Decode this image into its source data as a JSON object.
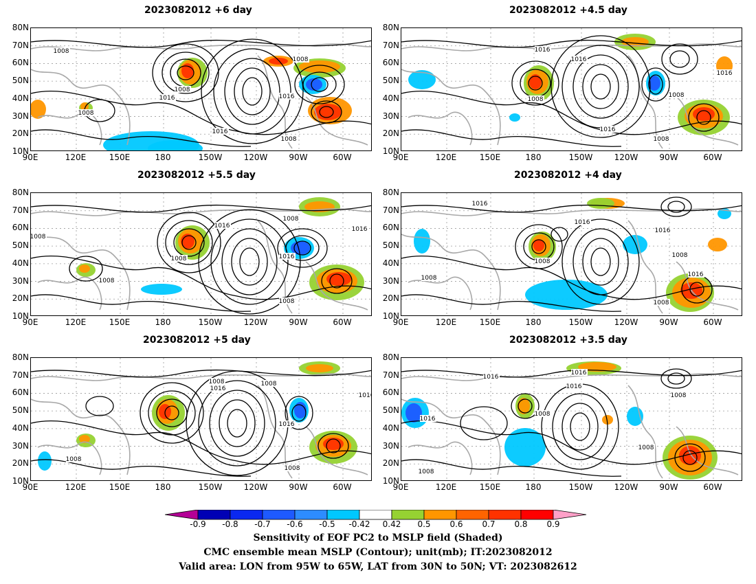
{
  "panels": [
    {
      "title": "2023082012  +6  day"
    },
    {
      "title": "2023082012  +4.5  day"
    },
    {
      "title": "2023082012  +5.5  day"
    },
    {
      "title": "2023082012  +4  day"
    },
    {
      "title": "2023082012  +5  day"
    },
    {
      "title": "2023082012  +3.5  day"
    }
  ],
  "lat_labels": [
    "80N",
    "70N",
    "60N",
    "50N",
    "40N",
    "30N",
    "20N",
    "10N"
  ],
  "lon_labels": [
    "90E",
    "120E",
    "150E",
    "180",
    "150W",
    "120W",
    "90W",
    "60W"
  ],
  "contour_labels": {
    "p0": [
      "1008",
      "1008",
      "1016",
      "1008",
      "1016",
      "1016",
      "1008",
      "1008"
    ],
    "p1": [
      "1016",
      "1016",
      "1008",
      "1016",
      "1016",
      "1008",
      "1008"
    ],
    "p2": [
      "1016",
      "1008",
      "1008",
      "1016",
      "1008",
      "1008",
      "1016",
      "1008"
    ],
    "p3": [
      "1016",
      "1016",
      "1008",
      "1016",
      "1008",
      "1016",
      "1008",
      "1008"
    ],
    "p4": [
      "1008",
      "1016",
      "1008",
      "1016",
      "1016",
      "1008",
      "1008"
    ],
    "p5": [
      "1016",
      "1016",
      "1016",
      "1008",
      "1016",
      "1008",
      "1008",
      "1008"
    ]
  },
  "colorbar": {
    "ticks": [
      "-0.9",
      "-0.8",
      "-0.7",
      "-0.6",
      "-0.5",
      "-0.42",
      "0.42",
      "0.5",
      "0.6",
      "0.7",
      "0.8",
      "0.9"
    ],
    "colors": [
      "#0000b4",
      "#0a28f0",
      "#1e5aff",
      "#2d8cff",
      "#00c8ff",
      "#ffffff",
      "#96d232",
      "#ff9600",
      "#ff6400",
      "#ff3200",
      "#ff0000"
    ],
    "under_color": "#b40096",
    "over_color": "#ffa0c8"
  },
  "footer": {
    "line1": "Sensitivity of EOF PC2 to MSLP field (Shaded)",
    "line2": "CMC ensemble mean MSLP (Contour); unit(mb); IT:2023082012",
    "line3": "Valid area: LON from 95W to 65W, LAT from 30N to 50N; VT: 2023082612"
  }
}
